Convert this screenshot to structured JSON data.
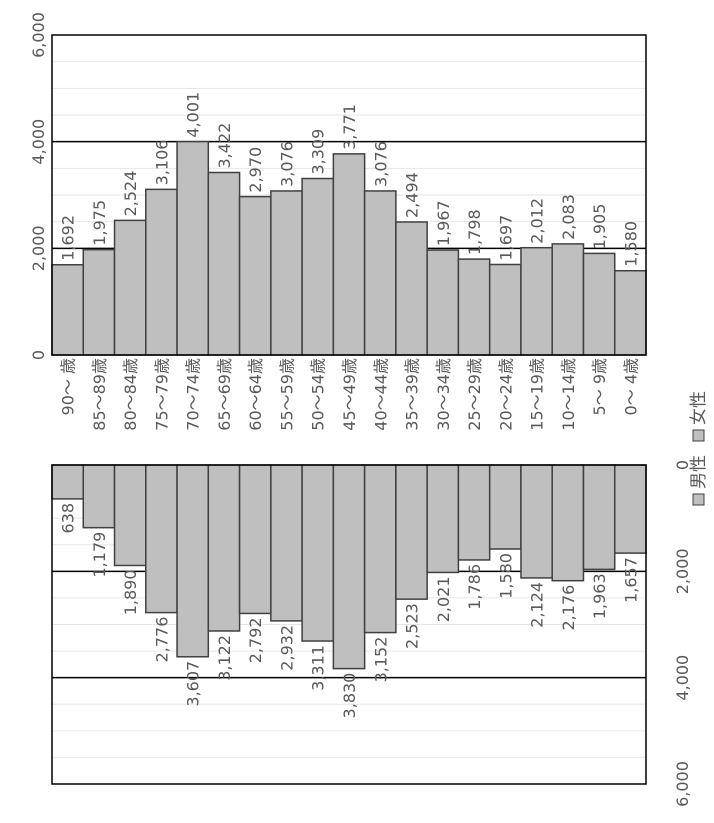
{
  "chart_data": [
    {
      "type": "bar",
      "orientation": "horizontal",
      "series": [
        {
          "name": "女性",
          "values": [
            1692,
            1975,
            2524,
            3106,
            4001,
            3422,
            2970,
            3076,
            3309,
            3771,
            3076,
            2494,
            1967,
            1798,
            1697,
            2012,
            2083,
            1905,
            1580
          ]
        }
      ],
      "categories": [
        "90～ 歳",
        "85～89歳",
        "80～84歳",
        "75～79歳",
        "70～74歳",
        "65～69歳",
        "60～64歳",
        "55～59歳",
        "50～54歳",
        "45～49歳",
        "40～44歳",
        "35～39歳",
        "30～34歳",
        "25～29歳",
        "20～24歳",
        "15～19歳",
        "10～14歳",
        "5～ 9歳",
        "0～ 4歳"
      ],
      "value_ticks": [
        "0",
        "2,000",
        "4,000",
        "6,000"
      ],
      "ylim": [
        0,
        6000
      ],
      "grid": true
    },
    {
      "type": "bar",
      "orientation": "horizontal",
      "series": [
        {
          "name": "男性",
          "values": [
            638,
            1179,
            1890,
            2776,
            3607,
            3122,
            2792,
            2932,
            3311,
            3830,
            3152,
            2523,
            2021,
            1786,
            1580,
            2124,
            2176,
            1963,
            1657
          ]
        }
      ],
      "value_ticks": [
        "0",
        "2,000",
        "4,000",
        "6,000"
      ],
      "ylim": [
        0,
        6000
      ],
      "grid": true
    }
  ],
  "legend": [
    {
      "label": "男性",
      "color": "#bfbfbf"
    },
    {
      "label": "女性",
      "color": "#bfbfbf"
    }
  ],
  "colors": {
    "bar_fill": "#bfbfbf",
    "bar_stroke": "#404040",
    "grid": "#e6e6e6",
    "text": "#595959"
  }
}
